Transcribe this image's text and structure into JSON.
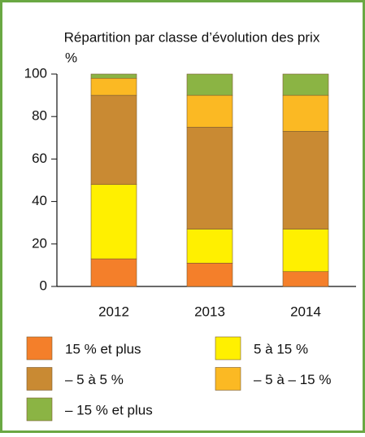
{
  "chart_data": {
    "type": "stacked_bar",
    "title": "Répartition par classe d’évolution des prix",
    "y_label": "%",
    "categories": [
      "2012",
      "2013",
      "2014"
    ],
    "series": [
      {
        "name": "15 % et plus",
        "color": "#f47f2a",
        "values": [
          13,
          11,
          7
        ]
      },
      {
        "name": "5 à 15 %",
        "color": "#fff000",
        "values": [
          35,
          16,
          20
        ]
      },
      {
        "name": "– 5 à 5 %",
        "color": "#c98a33",
        "values": [
          42,
          48,
          46
        ]
      },
      {
        "name": "– 5 à – 15 %",
        "color": "#fbb923",
        "values": [
          8,
          15,
          17
        ]
      },
      {
        "name": "– 15 % et plus",
        "color": "#8bb444",
        "values": [
          2,
          10,
          10
        ]
      }
    ],
    "ylim": [
      0,
      100
    ],
    "yticks": [
      0,
      20,
      40,
      60,
      80,
      100
    ],
    "grid": false
  }
}
